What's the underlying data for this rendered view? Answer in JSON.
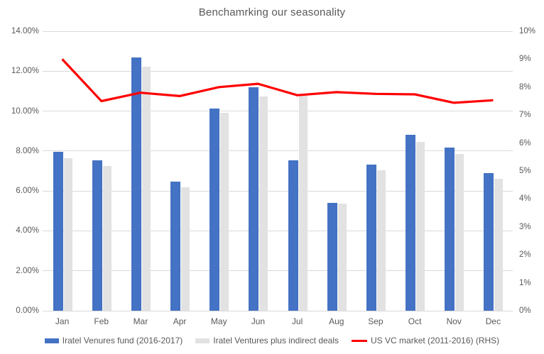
{
  "chart_data": {
    "type": "combo-bar-line",
    "title": "Benchamrking our seasonality",
    "categories": [
      "Jan",
      "Feb",
      "Mar",
      "Apr",
      "May",
      "Jun",
      "Jul",
      "Aug",
      "Sep",
      "Oct",
      "Nov",
      "Dec"
    ],
    "series": [
      {
        "name": "Iratel Venures fund (2016-2017)",
        "type": "bar",
        "axis": "left",
        "color": "#4472C4",
        "values": [
          7.95,
          7.54,
          12.68,
          6.48,
          10.12,
          11.19,
          7.54,
          5.39,
          7.32,
          8.82,
          8.17,
          6.89
        ]
      },
      {
        "name": "Iratel Ventures plus indirect deals",
        "type": "bar",
        "axis": "left",
        "color": "#E2E2E2",
        "values": [
          7.64,
          7.26,
          12.22,
          6.17,
          9.91,
          10.73,
          10.75,
          5.35,
          7.03,
          8.46,
          7.84,
          6.6
        ]
      },
      {
        "name": "US VC market (2011-2016) (RHS)",
        "type": "line",
        "axis": "right",
        "color": "#FF0000",
        "values": [
          9.0,
          7.5,
          7.8,
          7.68,
          8.0,
          8.12,
          7.71,
          7.82,
          7.76,
          7.74,
          7.44,
          7.53
        ]
      }
    ],
    "left_axis": {
      "min": 0,
      "max": 14,
      "tick_labels": [
        "0.00%",
        "2.00%",
        "4.00%",
        "6.00%",
        "8.00%",
        "10.00%",
        "12.00%",
        "14.00%"
      ]
    },
    "right_axis": {
      "min": 0,
      "max": 10,
      "tick_labels": [
        "0%",
        "1%",
        "2%",
        "3%",
        "4%",
        "5%",
        "6%",
        "7%",
        "8%",
        "9%",
        "10%"
      ]
    },
    "grid": true,
    "legend_position": "bottom"
  },
  "colors": {
    "grid": "#D9D9D9",
    "axis_text": "#595959",
    "title_text": "#595959",
    "background": "#FFFFFF"
  }
}
